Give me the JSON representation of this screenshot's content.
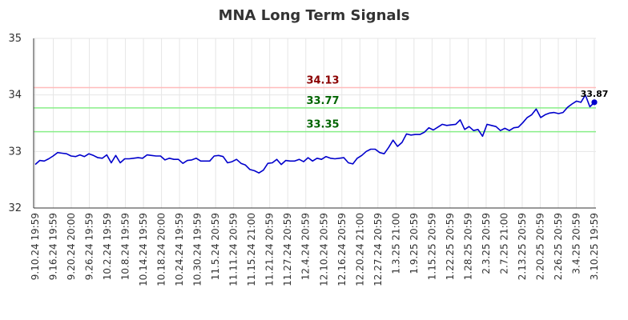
{
  "chart_data": {
    "type": "line",
    "title": "MNA Long Term Signals",
    "ylim": [
      32,
      35
    ],
    "yticks": [
      32,
      33,
      34,
      35
    ],
    "grid": true,
    "x_ticks": [
      "9.10.24 19:59",
      "9.16.24 19:59",
      "9.20.24 20:00",
      "9.26.24 19:59",
      "10.2.24 19:59",
      "10.8.24 19:59",
      "10.14.24 19:59",
      "10.18.24 20:00",
      "10.24.24 19:59",
      "10.30.24 19:59",
      "11.5.24 20:59",
      "11.11.24 20:59",
      "11.15.24 21:00",
      "11.21.24 20:59",
      "11.27.24 20:59",
      "12.4.24 20:59",
      "12.10.24 20:59",
      "12.16.24 20:59",
      "12.20.24 21:00",
      "12.27.24 20:59",
      "1.3.25 21:00",
      "1.9.25 20:59",
      "1.15.25 20:59",
      "1.22.25 20:59",
      "1.28.25 20:59",
      "2.3.25 20:59",
      "2.7.25 21:00",
      "2.13.25 20:59",
      "2.20.25 20:59",
      "2.26.25 20:59",
      "3.4.25 20:59",
      "3.10.25 19:59"
    ],
    "series": [
      {
        "color": "#0000cc",
        "values": [
          32.77,
          32.84,
          32.83,
          32.87,
          32.92,
          32.98,
          32.97,
          32.96,
          32.92,
          32.91,
          32.94,
          32.91,
          32.96,
          32.93,
          32.89,
          32.88,
          32.94,
          32.8,
          32.93,
          32.8,
          32.87,
          32.87,
          32.88,
          32.89,
          32.88,
          32.94,
          32.93,
          32.92,
          32.92,
          32.85,
          32.88,
          32.86,
          32.86,
          32.79,
          32.84,
          32.85,
          32.88,
          32.83,
          32.83,
          32.83,
          32.92,
          32.93,
          32.91,
          32.8,
          32.82,
          32.86,
          32.79,
          32.76,
          32.68,
          32.66,
          32.62,
          32.67,
          32.79,
          32.8,
          32.86,
          32.77,
          32.84,
          32.83,
          32.83,
          32.86,
          32.82,
          32.89,
          32.83,
          32.88,
          32.86,
          32.91,
          32.88,
          32.87,
          32.88,
          32.89,
          32.8,
          32.78,
          32.88,
          32.93,
          33.0,
          33.04,
          33.04,
          32.98,
          32.96,
          33.07,
          33.2,
          33.09,
          33.16,
          33.31,
          33.29,
          33.3,
          33.3,
          33.34,
          33.42,
          33.38,
          33.43,
          33.48,
          33.46,
          33.47,
          33.48,
          33.56,
          33.39,
          33.44,
          33.37,
          33.39,
          33.27,
          33.48,
          33.46,
          33.44,
          33.37,
          33.41,
          33.37,
          33.42,
          33.43,
          33.51,
          33.6,
          33.65,
          33.75,
          33.6,
          33.65,
          33.68,
          33.69,
          33.67,
          33.69,
          33.78,
          33.84,
          33.89,
          33.87,
          34.0,
          33.79,
          33.87
        ]
      }
    ],
    "signals": [
      {
        "value": 34.13,
        "label": "34.13",
        "line_color": "#ffbbbb",
        "text_color": "#8b0000"
      },
      {
        "value": 33.77,
        "label": "33.77",
        "line_color": "#88ee88",
        "text_color": "#006400"
      },
      {
        "value": 33.35,
        "label": "33.35",
        "line_color": "#88ee88",
        "text_color": "#006400"
      }
    ],
    "last_value_label": "33.87"
  }
}
